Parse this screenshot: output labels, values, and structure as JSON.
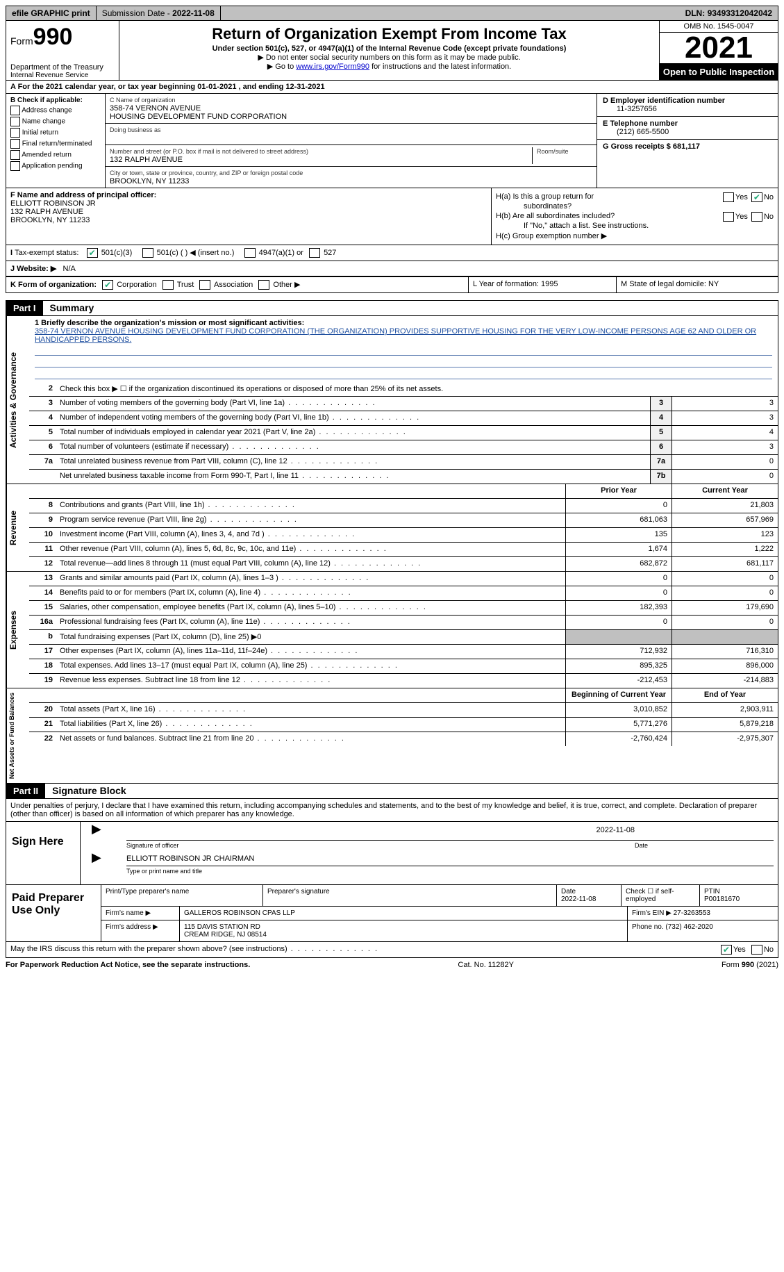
{
  "top": {
    "efile": "efile GRAPHIC print",
    "sub_label": "Submission Date - ",
    "sub_date": "2022-11-08",
    "dln_label": "DLN: ",
    "dln": "93493312042042"
  },
  "header": {
    "form": "Form",
    "num": "990",
    "dept": "Department of the Treasury",
    "irs": "Internal Revenue Service",
    "title": "Return of Organization Exempt From Income Tax",
    "sub": "Under section 501(c), 527, or 4947(a)(1) of the Internal Revenue Code (except private foundations)",
    "arrow1": "▶ Do not enter social security numbers on this form as it may be made public.",
    "arrow2_a": "▶ Go to ",
    "arrow2_link": "www.irs.gov/Form990",
    "arrow2_b": " for instructions and the latest information.",
    "omb": "OMB No. 1545-0047",
    "year": "2021",
    "open": "Open to Public Inspection"
  },
  "a": {
    "text": "A For the 2021 calendar year, or tax year beginning 01-01-2021   , and ending 12-31-2021"
  },
  "b": {
    "title": "B Check if applicable:",
    "opts": [
      "Address change",
      "Name change",
      "Initial return",
      "Final return/terminated",
      "Amended return",
      "Application pending"
    ]
  },
  "c": {
    "name_label": "C Name of organization",
    "name1": "358-74 VERNON AVENUE",
    "name2": "HOUSING DEVELOPMENT FUND CORPORATION",
    "dba": "Doing business as",
    "addr_label": "Number and street (or P.O. box if mail is not delivered to street address)",
    "room": "Room/suite",
    "addr": "132 RALPH AVENUE",
    "city_label": "City or town, state or province, country, and ZIP or foreign postal code",
    "city": "BROOKLYN, NY  11233"
  },
  "d": {
    "label": "D Employer identification number",
    "val": "11-3257656"
  },
  "e": {
    "label": "E Telephone number",
    "val": "(212) 665-5500"
  },
  "g": {
    "label": "G Gross receipts $ 681,117"
  },
  "f": {
    "label": "F Name and address of principal officer:",
    "l1": "ELLIOTT ROBINSON JR",
    "l2": "132 RALPH AVENUE",
    "l3": "BROOKLYN, NY  11233"
  },
  "h": {
    "a1": "H(a)  Is this a group return for",
    "a2": "subordinates?",
    "b1": "H(b)  Are all subordinates included?",
    "b2": "If \"No,\" attach a list. See instructions.",
    "c": "H(c)  Group exemption number ▶",
    "yes": "Yes",
    "no": "No"
  },
  "i": {
    "label": "Tax-exempt status:",
    "o1": "501(c)(3)",
    "o2": "501(c) (  ) ◀ (insert no.)",
    "o3": "4947(a)(1) or",
    "o4": "527"
  },
  "j": {
    "label": "J  Website: ▶",
    "val": "N/A"
  },
  "k": {
    "label": "K Form of organization:",
    "o1": "Corporation",
    "o2": "Trust",
    "o3": "Association",
    "o4": "Other ▶"
  },
  "l": {
    "label": "L Year of formation: 1995"
  },
  "m": {
    "label": "M State of legal domicile: NY"
  },
  "part1": {
    "tag": "Part I",
    "title": "Summary"
  },
  "summary": {
    "q1_label": "1  Briefly describe the organization's mission or most significant activities:",
    "mission": "358-74 VERNON AVENUE HOUSING DEVELOPMENT FUND CORPORATION (THE ORGANIZATION) PROVIDES SUPPORTIVE HOUSING FOR THE VERY LOW-INCOME PERSONS AGE 62 AND OLDER OR HANDICAPPED PERSONS.",
    "q2": "Check this box ▶ ☐ if the organization discontinued its operations or disposed of more than 25% of its net assets.",
    "rows_ag": [
      {
        "n": "3",
        "d": "Number of voting members of the governing body (Part VI, line 1a)",
        "box": "3",
        "v": "3"
      },
      {
        "n": "4",
        "d": "Number of independent voting members of the governing body (Part VI, line 1b)",
        "box": "4",
        "v": "3"
      },
      {
        "n": "5",
        "d": "Total number of individuals employed in calendar year 2021 (Part V, line 2a)",
        "box": "5",
        "v": "4"
      },
      {
        "n": "6",
        "d": "Total number of volunteers (estimate if necessary)",
        "box": "6",
        "v": "3"
      },
      {
        "n": "7a",
        "d": "Total unrelated business revenue from Part VIII, column (C), line 12",
        "box": "7a",
        "v": "0"
      },
      {
        "n": "",
        "d": "Net unrelated business taxable income from Form 990-T, Part I, line 11",
        "box": "7b",
        "v": "0"
      }
    ],
    "prior": "Prior Year",
    "current": "Current Year",
    "rows_rev": [
      {
        "n": "8",
        "d": "Contributions and grants (Part VIII, line 1h)",
        "p": "0",
        "c": "21,803"
      },
      {
        "n": "9",
        "d": "Program service revenue (Part VIII, line 2g)",
        "p": "681,063",
        "c": "657,969"
      },
      {
        "n": "10",
        "d": "Investment income (Part VIII, column (A), lines 3, 4, and 7d )",
        "p": "135",
        "c": "123"
      },
      {
        "n": "11",
        "d": "Other revenue (Part VIII, column (A), lines 5, 6d, 8c, 9c, 10c, and 11e)",
        "p": "1,674",
        "c": "1,222"
      },
      {
        "n": "12",
        "d": "Total revenue—add lines 8 through 11 (must equal Part VIII, column (A), line 12)",
        "p": "682,872",
        "c": "681,117"
      }
    ],
    "rows_exp": [
      {
        "n": "13",
        "d": "Grants and similar amounts paid (Part IX, column (A), lines 1–3 )",
        "p": "0",
        "c": "0"
      },
      {
        "n": "14",
        "d": "Benefits paid to or for members (Part IX, column (A), line 4)",
        "p": "0",
        "c": "0"
      },
      {
        "n": "15",
        "d": "Salaries, other compensation, employee benefits (Part IX, column (A), lines 5–10)",
        "p": "182,393",
        "c": "179,690"
      },
      {
        "n": "16a",
        "d": "Professional fundraising fees (Part IX, column (A), line 11e)",
        "p": "0",
        "c": "0"
      },
      {
        "n": "b",
        "d": "Total fundraising expenses (Part IX, column (D), line 25) ▶0",
        "p": "grey",
        "c": "grey"
      },
      {
        "n": "17",
        "d": "Other expenses (Part IX, column (A), lines 11a–11d, 11f–24e)",
        "p": "712,932",
        "c": "716,310"
      },
      {
        "n": "18",
        "d": "Total expenses. Add lines 13–17 (must equal Part IX, column (A), line 25)",
        "p": "895,325",
        "c": "896,000"
      },
      {
        "n": "19",
        "d": "Revenue less expenses. Subtract line 18 from line 12",
        "p": "-212,453",
        "c": "-214,883"
      }
    ],
    "boy": "Beginning of Current Year",
    "eoy": "End of Year",
    "rows_na": [
      {
        "n": "20",
        "d": "Total assets (Part X, line 16)",
        "p": "3,010,852",
        "c": "2,903,911"
      },
      {
        "n": "21",
        "d": "Total liabilities (Part X, line 26)",
        "p": "5,771,276",
        "c": "5,879,218"
      },
      {
        "n": "22",
        "d": "Net assets or fund balances. Subtract line 21 from line 20",
        "p": "-2,760,424",
        "c": "-2,975,307"
      }
    ],
    "vtab_ag": "Activities & Governance",
    "vtab_rev": "Revenue",
    "vtab_exp": "Expenses",
    "vtab_na": "Net Assets or Fund Balances"
  },
  "part2": {
    "tag": "Part II",
    "title": "Signature Block"
  },
  "penalties": "Under penalties of perjury, I declare that I have examined this return, including accompanying schedules and statements, and to the best of my knowledge and belief, it is true, correct, and complete. Declaration of preparer (other than officer) is based on all information of which preparer has any knowledge.",
  "sign": {
    "here": "Sign Here",
    "sig_cap": "Signature of officer",
    "date": "2022-11-08",
    "date_cap": "Date",
    "name": "ELLIOTT ROBINSON JR  CHAIRMAN",
    "name_cap": "Type or print name and title"
  },
  "paid": {
    "title": "Paid Preparer Use Only",
    "h1": "Print/Type preparer's name",
    "h2": "Preparer's signature",
    "h3": "Date",
    "h3v": "2022-11-08",
    "h4": "Check ☐ if self-employed",
    "h5": "PTIN",
    "h5v": "P00181670",
    "firm_l": "Firm's name    ▶",
    "firm": "GALLEROS ROBINSON CPAS LLP",
    "ein_l": "Firm's EIN ▶",
    "ein": "27-3263553",
    "addr_l": "Firm's address ▶",
    "addr1": "115 DAVIS STATION RD",
    "addr2": "CREAM RIDGE, NJ  08514",
    "phone_l": "Phone no.",
    "phone": "(732) 462-2020"
  },
  "discuss": {
    "text": "May the IRS discuss this return with the preparer shown above? (see instructions)",
    "yes": "Yes",
    "no": "No"
  },
  "footer": {
    "left": "For Paperwork Reduction Act Notice, see the separate instructions.",
    "mid": "Cat. No. 11282Y",
    "right": "Form 990 (2021)"
  }
}
